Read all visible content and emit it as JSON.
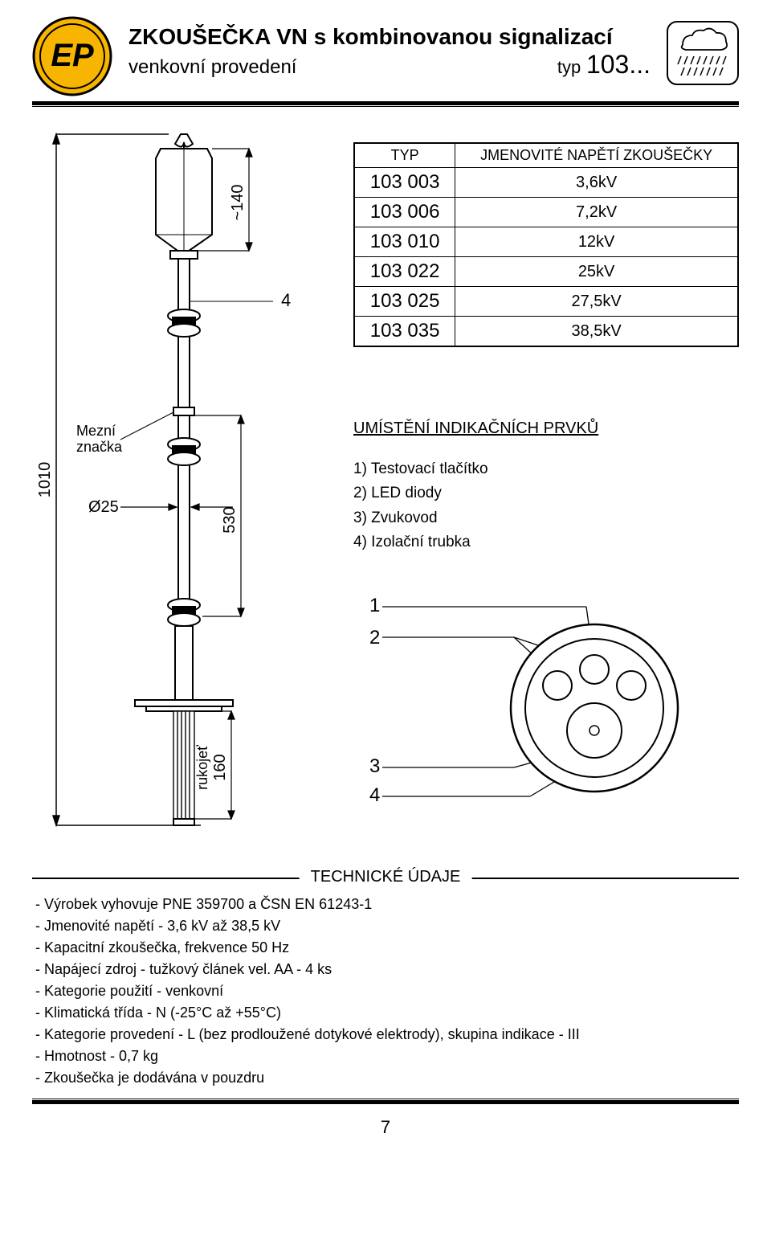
{
  "header": {
    "title_main": "ZKOUŠEČKA VN s kombinovanou signalizací",
    "title_sub": "venkovní provedení",
    "type_word": "typ",
    "type_number": "103..."
  },
  "logo": {
    "fill": "#f7b500",
    "text": "EP"
  },
  "drawing": {
    "dim_total": "1010",
    "dim_head": "~140",
    "dim_mid": "530",
    "dim_handle": "160",
    "dia": "Ø25",
    "handle_label": "rukojeť",
    "limit_label": "Mezní\nznačka",
    "callout_4": "4",
    "callout_1": "1",
    "callout_2": "2",
    "callout_3": "3",
    "callout_4b": "4"
  },
  "type_table": {
    "col1": "TYP",
    "col2": "JMENOVITÉ NAPĚTÍ ZKOUŠEČKY",
    "rows": [
      [
        "103 003",
        "3,6kV"
      ],
      [
        "103 006",
        "7,2kV"
      ],
      [
        "103 010",
        "12kV"
      ],
      [
        "103 022",
        "25kV"
      ],
      [
        "103 025",
        "27,5kV"
      ],
      [
        "103 035",
        "38,5kV"
      ]
    ]
  },
  "indik": {
    "title": "UMÍSTĚNÍ INDIKAČNÍCH PRVKŮ",
    "items": [
      "1) Testovací tlačítko",
      "2) LED diody",
      "3) Zvukovod",
      "4) Izolační trubka"
    ]
  },
  "tech": {
    "title": "TECHNICKÉ ÚDAJE",
    "lines": [
      "- Výrobek vyhovuje PNE 359700 a ČSN EN 61243-1",
      "- Jmenovité napětí - 3,6 kV až 38,5 kV",
      "- Kapacitní zkoušečka, frekvence 50 Hz",
      "- Napájecí zdroj - tužkový článek vel. AA - 4 ks",
      "- Kategorie použití - venkovní",
      "- Klimatická třída - N (-25°C až +55°C)",
      "- Kategorie provedení - L (bez prodloužené dotykové elektrody), skupina indikace - III",
      "- Hmotnost - 0,7 kg",
      "- Zkoušečka je dodávána v pouzdru"
    ]
  },
  "page_number": "7",
  "colors": {
    "gold": "#f7b500",
    "black": "#000000"
  }
}
